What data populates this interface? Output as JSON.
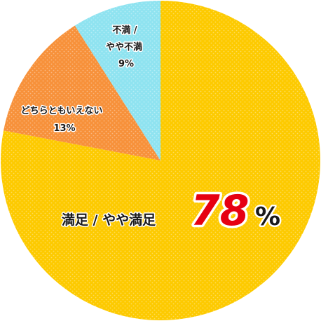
{
  "chart_data": {
    "type": "pie",
    "slices": [
      {
        "label": "満足 / やや満足",
        "value": 78,
        "display": "78",
        "unit": "%",
        "color": "#fdca00"
      },
      {
        "label": "どちらともいえない",
        "value": 13,
        "display": "13%",
        "color": "#f7913a"
      },
      {
        "label_lines": [
          "不満 /",
          "やや不満"
        ],
        "value": 9,
        "display": "9%",
        "color": "#8fe3f0"
      }
    ]
  }
}
